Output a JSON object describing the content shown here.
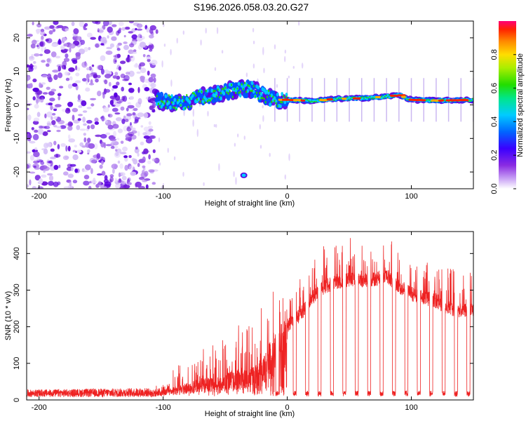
{
  "title": "S196.2026.058.03.20.G27",
  "chart_data": [
    {
      "type": "heatmap",
      "xlabel": "Height of straight line (km)",
      "ylabel": "Frequency (Hz)",
      "xlim": [
        -210,
        150
      ],
      "ylim": [
        -25,
        25
      ],
      "xticks": [
        -200,
        -100,
        0,
        100
      ],
      "yticks": [
        -20,
        -10,
        0,
        10,
        20
      ],
      "ytick_labels": [
        "-20",
        "-10",
        "0",
        "10",
        "20"
      ],
      "xtick_labels": [
        "-200",
        "-100",
        "0",
        "100"
      ],
      "colorbar": {
        "label": "Normalized spectral amplitude",
        "range": [
          0,
          1
        ],
        "ticks": [
          0.0,
          0.2,
          0.4,
          0.6,
          0.8
        ],
        "tick_labels": [
          "0.0",
          "0.2",
          "0.4",
          "0.6",
          "0.8"
        ]
      },
      "features": {
        "noise_region_x": [
          -210,
          -105
        ],
        "signal_track": [
          {
            "x": -105,
            "f": 1.5
          },
          {
            "x": -90,
            "f": 0.5
          },
          {
            "x": -80,
            "f": 1.0
          },
          {
            "x": -70,
            "f": 2.5
          },
          {
            "x": -60,
            "f": 3.0
          },
          {
            "x": -50,
            "f": 4.0
          },
          {
            "x": -40,
            "f": 4.5
          },
          {
            "x": -30,
            "f": 5.0
          },
          {
            "x": -20,
            "f": 3.0
          },
          {
            "x": -10,
            "f": 1.5
          },
          {
            "x": 0,
            "f": 1.5
          },
          {
            "x": 20,
            "f": 1.2
          },
          {
            "x": 40,
            "f": 1.8
          },
          {
            "x": 60,
            "f": 2.0
          },
          {
            "x": 80,
            "f": 2.5
          },
          {
            "x": 90,
            "f": 3.0
          },
          {
            "x": 100,
            "f": 1.5
          },
          {
            "x": 120,
            "f": 1.3
          },
          {
            "x": 150,
            "f": 1.5
          }
        ],
        "isolated_blob": {
          "x": -35,
          "f": -21
        }
      }
    },
    {
      "type": "line",
      "xlabel": "Height of straight line (km)",
      "ylabel": "SNR (10 * v/v)",
      "xlim": [
        -210,
        150
      ],
      "ylim": [
        0,
        460
      ],
      "xticks": [
        -200,
        -100,
        0,
        100
      ],
      "yticks": [
        0,
        100,
        200,
        300,
        400
      ],
      "xtick_labels": [
        "-200",
        "-100",
        "0",
        "100"
      ],
      "ytick_labels": [
        "0",
        "100",
        "200",
        "300",
        "400"
      ],
      "color": "#ee2222",
      "envelope": [
        {
          "x": -210,
          "base": 18,
          "top": 25
        },
        {
          "x": -110,
          "base": 20,
          "top": 30
        },
        {
          "x": -100,
          "base": 25,
          "top": 40
        },
        {
          "x": -90,
          "base": 30,
          "top": 80
        },
        {
          "x": -80,
          "base": 40,
          "top": 100
        },
        {
          "x": -70,
          "base": 50,
          "top": 110
        },
        {
          "x": -60,
          "base": 50,
          "top": 120
        },
        {
          "x": -50,
          "base": 60,
          "top": 150
        },
        {
          "x": -40,
          "base": 70,
          "top": 170
        },
        {
          "x": -30,
          "base": 80,
          "top": 200
        },
        {
          "x": -20,
          "base": 100,
          "top": 220
        },
        {
          "x": -10,
          "base": 150,
          "top": 250
        },
        {
          "x": 0,
          "base": 200,
          "top": 280
        },
        {
          "x": 10,
          "base": 230,
          "top": 300
        },
        {
          "x": 20,
          "base": 280,
          "top": 340
        },
        {
          "x": 30,
          "base": 310,
          "top": 360
        },
        {
          "x": 40,
          "base": 320,
          "top": 380
        },
        {
          "x": 50,
          "base": 330,
          "top": 380
        },
        {
          "x": 60,
          "base": 325,
          "top": 370
        },
        {
          "x": 70,
          "base": 330,
          "top": 385
        },
        {
          "x": 80,
          "base": 340,
          "top": 390
        },
        {
          "x": 90,
          "base": 310,
          "top": 360
        },
        {
          "x": 100,
          "base": 290,
          "top": 340
        },
        {
          "x": 110,
          "base": 280,
          "top": 320
        },
        {
          "x": 120,
          "base": 270,
          "top": 310
        },
        {
          "x": 130,
          "base": 250,
          "top": 290
        },
        {
          "x": 140,
          "base": 245,
          "top": 280
        },
        {
          "x": 150,
          "base": 250,
          "top": 275
        }
      ],
      "dropouts_x": [
        -8,
        6,
        16,
        26,
        36,
        46,
        56,
        66,
        76,
        86,
        96,
        106,
        116,
        126,
        136,
        146
      ],
      "dropout_level": 10
    }
  ]
}
